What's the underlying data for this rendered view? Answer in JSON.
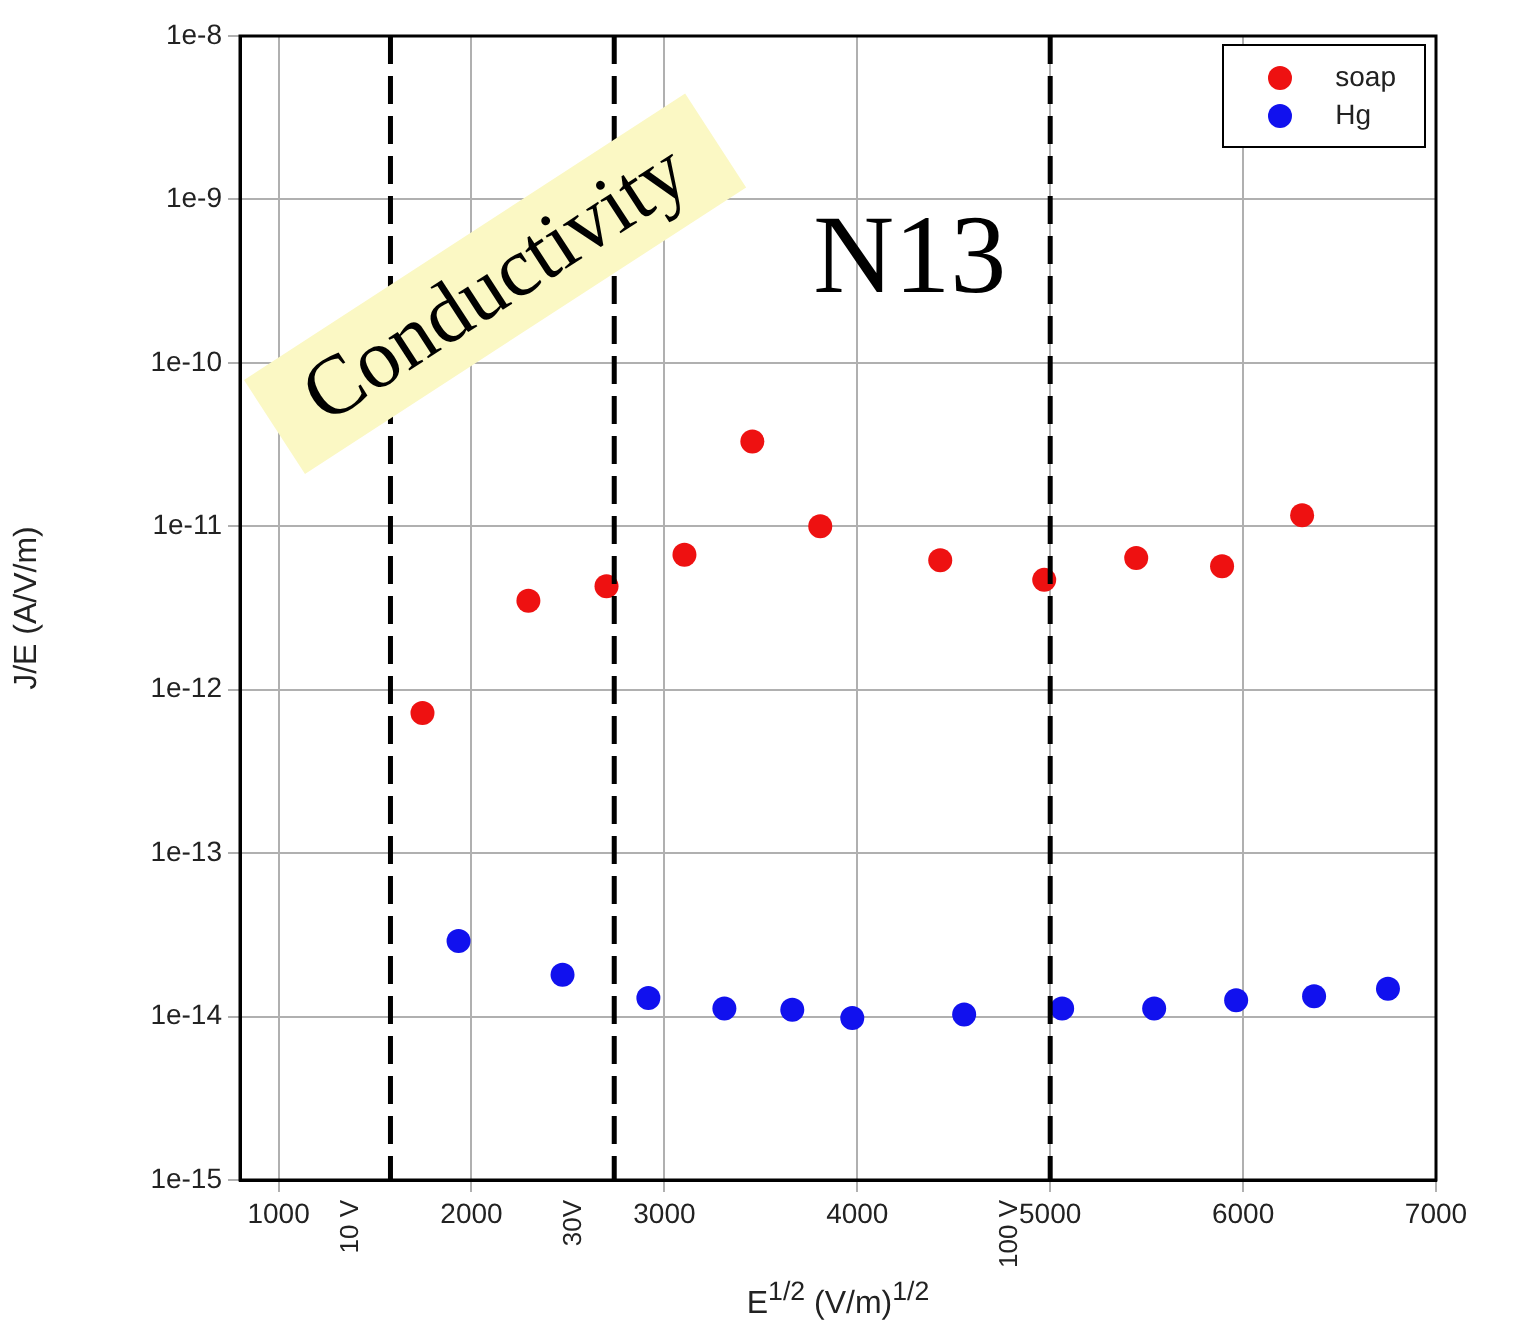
{
  "chart_data": {
    "type": "scatter",
    "title": "Conductivity",
    "xlabel": "E$^{1/2}$ (V/m)$^{1/2}$",
    "ylabel": "J/E (A/V/m)",
    "annotations": [
      "N13"
    ],
    "log": "y",
    "grid": true,
    "legend": "top right",
    "marker": "circle",
    "xlim": [
      800,
      7000
    ],
    "xticks": [
      1000,
      2000,
      3000,
      4000,
      5000,
      6000,
      7000
    ],
    "ylim": [
      1e-15,
      1e-08
    ],
    "yticks": [
      {
        "value": 1e-15,
        "label": "1e-15"
      },
      {
        "value": 1e-14,
        "label": "1e-14"
      },
      {
        "value": 1e-13,
        "label": "1e-13"
      },
      {
        "value": 1e-12,
        "label": "1e-12"
      },
      {
        "value": 1e-11,
        "label": "1e-11"
      },
      {
        "value": 1e-10,
        "label": "1e-10"
      },
      {
        "value": 1e-09,
        "label": "1e-9"
      },
      {
        "value": 1e-08,
        "label": "1e-8"
      }
    ],
    "series": [
      {
        "name": "soap",
        "color": "#ee1111",
        "x": [
          1746,
          2295,
          2700,
          3104,
          3456,
          3808,
          4430,
          4969,
          5446,
          5891,
          6306
        ],
        "values": [
          7.2e-13,
          3.5e-12,
          4.3e-12,
          6.7e-12,
          3.3e-11,
          1e-11,
          6.2e-12,
          4.7e-12,
          6.4e-12,
          5.7e-12,
          1.17e-11
        ]
      },
      {
        "name": "Hg",
        "color": "#1111ee",
        "x": [
          1933,
          2472,
          2917,
          3311,
          3663,
          3974,
          4554,
          5062,
          5539,
          5964,
          6368,
          6751
        ],
        "values": [
          2.9e-14,
          1.8e-14,
          1.3e-14,
          1.12e-14,
          1.1e-14,
          9.8e-15,
          1.03e-14,
          1.12e-14,
          1.12e-14,
          1.26e-14,
          1.33e-14,
          1.48e-14
        ]
      }
    ],
    "ref_lines": [
      {
        "axis": "x",
        "value": 1580,
        "label": "10 V",
        "line_style": "dashed",
        "color": "#000000"
      },
      {
        "axis": "x",
        "value": 2740,
        "label": "30V",
        "line_style": "dashed",
        "color": "#000000"
      },
      {
        "axis": "x",
        "value": 5000,
        "label": "100 V",
        "line_style": "dashed",
        "color": "#000000"
      }
    ]
  }
}
